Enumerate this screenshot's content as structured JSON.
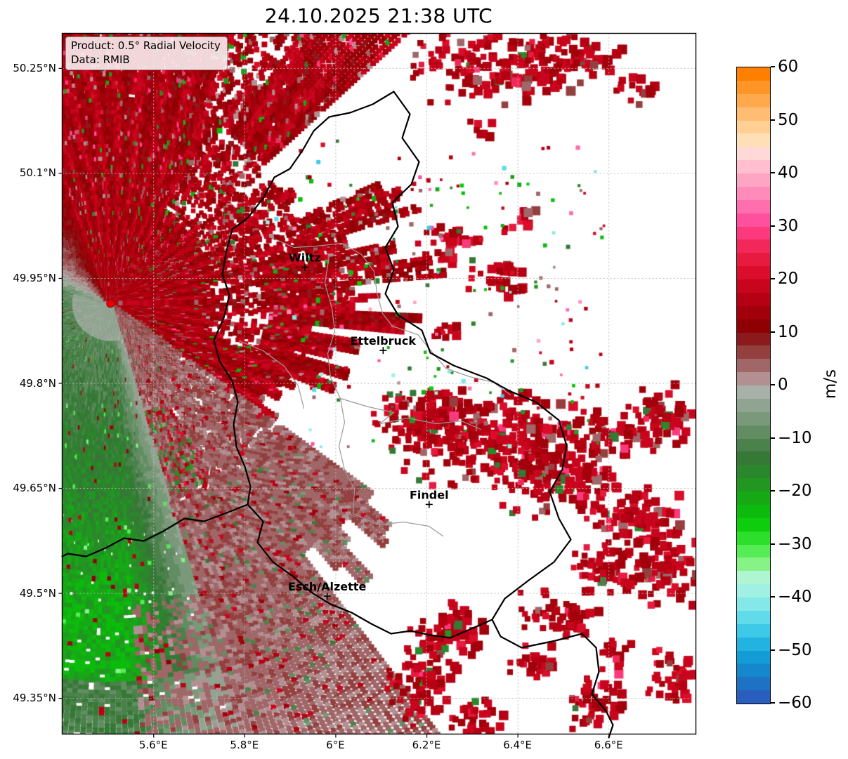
{
  "title": "24.10.2025 21:38 UTC",
  "info_box": {
    "product": "Product: 0.5° Radial Velocity",
    "data": "Data: RMIB"
  },
  "axes": {
    "lon": {
      "min": 5.399,
      "max": 6.791,
      "ticks": [
        {
          "value": 5.6,
          "label": "5.6°E"
        },
        {
          "value": 5.8,
          "label": "5.8°E"
        },
        {
          "value": 6.0,
          "label": "6°E"
        },
        {
          "value": 6.2,
          "label": "6.2°E"
        },
        {
          "value": 6.4,
          "label": "6.4°E"
        },
        {
          "value": 6.6,
          "label": "6.6°E"
        }
      ]
    },
    "lat": {
      "min": 49.299,
      "max": 50.3,
      "ticks": [
        {
          "value": 50.25,
          "label": "50.25°N"
        },
        {
          "value": 50.1,
          "label": "50.1°N"
        },
        {
          "value": 49.95,
          "label": "49.95°N"
        },
        {
          "value": 49.8,
          "label": "49.8°N"
        },
        {
          "value": 49.65,
          "label": "49.65°N"
        },
        {
          "value": 49.5,
          "label": "49.5°N"
        },
        {
          "value": 49.35,
          "label": "49.35°N"
        }
      ]
    }
  },
  "cities": [
    {
      "name": "Wiltz",
      "lat": 49.966,
      "lon": 5.932
    },
    {
      "name": "Ettelbruck",
      "lat": 49.847,
      "lon": 6.104
    },
    {
      "name": "Findel",
      "lat": 49.627,
      "lon": 6.205
    },
    {
      "name": "Esch/Alzette",
      "lat": 49.496,
      "lon": 5.981
    }
  ],
  "radar_site": {
    "lat": 49.914,
    "lon": 5.505,
    "color": "#e8000b"
  },
  "colorbar": {
    "unit": "m/s",
    "ticks": [
      {
        "value": 60,
        "label": "60"
      },
      {
        "value": 50,
        "label": "50"
      },
      {
        "value": 40,
        "label": "40"
      },
      {
        "value": 30,
        "label": "30"
      },
      {
        "value": 20,
        "label": "20"
      },
      {
        "value": 10,
        "label": "10"
      },
      {
        "value": 0,
        "label": "0"
      },
      {
        "value": -10,
        "label": "−10"
      },
      {
        "value": -20,
        "label": "−20"
      },
      {
        "value": -30,
        "label": "−30"
      },
      {
        "value": -40,
        "label": "−40"
      },
      {
        "value": -50,
        "label": "−50"
      },
      {
        "value": -60,
        "label": "−60"
      }
    ],
    "bands": [
      {
        "from": 60,
        "to": 57.5,
        "color": "#ff7f00"
      },
      {
        "from": 57.5,
        "to": 55,
        "color": "#ff9526"
      },
      {
        "from": 55,
        "to": 52.5,
        "color": "#ffa94d"
      },
      {
        "from": 52.5,
        "to": 50,
        "color": "#ffbd73"
      },
      {
        "from": 50,
        "to": 47.5,
        "color": "#ffcf94"
      },
      {
        "from": 47.5,
        "to": 45,
        "color": "#ffdfb5"
      },
      {
        "from": 45,
        "to": 42.5,
        "color": "#ffd8d8"
      },
      {
        "from": 42.5,
        "to": 40,
        "color": "#ffbfce"
      },
      {
        "from": 40,
        "to": 37.5,
        "color": "#ffa5c4"
      },
      {
        "from": 37.5,
        "to": 35,
        "color": "#ff8bba"
      },
      {
        "from": 35,
        "to": 32.5,
        "color": "#ff6fae"
      },
      {
        "from": 32.5,
        "to": 30,
        "color": "#ff4f9f"
      },
      {
        "from": 30,
        "to": 27.5,
        "color": "#fb3a7d"
      },
      {
        "from": 27.5,
        "to": 25,
        "color": "#f2285a"
      },
      {
        "from": 25,
        "to": 22.5,
        "color": "#e71a40"
      },
      {
        "from": 22.5,
        "to": 20,
        "color": "#da0e2a"
      },
      {
        "from": 20,
        "to": 17.5,
        "color": "#c9051d"
      },
      {
        "from": 17.5,
        "to": 15,
        "color": "#b60013"
      },
      {
        "from": 15,
        "to": 12.5,
        "color": "#a2000b"
      },
      {
        "from": 12.5,
        "to": 10,
        "color": "#8e0004"
      },
      {
        "from": 10,
        "to": 7.5,
        "color": "#8a1a1c"
      },
      {
        "from": 7.5,
        "to": 5,
        "color": "#93403f"
      },
      {
        "from": 5,
        "to": 2.5,
        "color": "#a06668"
      },
      {
        "from": 2.5,
        "to": 0,
        "color": "#b29092"
      },
      {
        "from": 0,
        "to": -2.5,
        "color": "#a8b1a8"
      },
      {
        "from": -2.5,
        "to": -5,
        "color": "#91a491"
      },
      {
        "from": -5,
        "to": -7.5,
        "color": "#7a997a"
      },
      {
        "from": -7.5,
        "to": -10,
        "color": "#628d62"
      },
      {
        "from": -10,
        "to": -12.5,
        "color": "#4b814b"
      },
      {
        "from": -12.5,
        "to": -15,
        "color": "#367836"
      },
      {
        "from": -15,
        "to": -17.5,
        "color": "#2b872b"
      },
      {
        "from": -17.5,
        "to": -20,
        "color": "#219721"
      },
      {
        "from": -20,
        "to": -22.5,
        "color": "#16a916"
      },
      {
        "from": -22.5,
        "to": -25,
        "color": "#0cbb0c"
      },
      {
        "from": -25,
        "to": -27.5,
        "color": "#0dcd0d"
      },
      {
        "from": -27.5,
        "to": -30,
        "color": "#2bdf2b"
      },
      {
        "from": -30,
        "to": -32.5,
        "color": "#56ec56"
      },
      {
        "from": -32.5,
        "to": -35,
        "color": "#87f387"
      },
      {
        "from": -35,
        "to": -37.5,
        "color": "#b0f5d2"
      },
      {
        "from": -37.5,
        "to": -40,
        "color": "#a0f0e4"
      },
      {
        "from": -40,
        "to": -42.5,
        "color": "#84e8e8"
      },
      {
        "from": -42.5,
        "to": -45,
        "color": "#60dbea"
      },
      {
        "from": -45,
        "to": -47.5,
        "color": "#3ec9e8"
      },
      {
        "from": -47.5,
        "to": -50,
        "color": "#23b3e0"
      },
      {
        "from": -50,
        "to": -52.5,
        "color": "#139cd6"
      },
      {
        "from": -52.5,
        "to": -55,
        "color": "#1587cc"
      },
      {
        "from": -55,
        "to": -57.5,
        "color": "#1e72c4"
      },
      {
        "from": -57.5,
        "to": -60,
        "color": "#2a5ebc"
      }
    ]
  },
  "grid": {
    "color": "#b8b8b8"
  },
  "border_colors": {
    "national": "#000000",
    "district": "#9a9a9a"
  }
}
